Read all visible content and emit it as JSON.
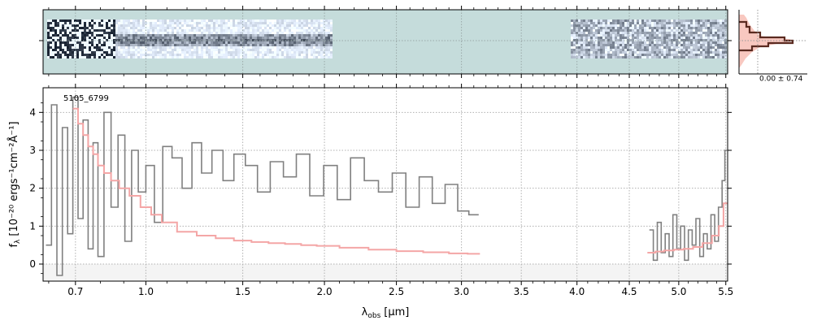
{
  "chart_data": {
    "type": "line",
    "title": "",
    "xlabel": "λ",
    "xlabel_sub": "obs",
    "xlabel_unit": "[μm]",
    "ylabel": "f",
    "ylabel_sub": "λ",
    "ylabel_unit": "[10⁻²⁰ ergs⁻¹cm⁻²Å⁻¹]",
    "annotation": "5105_6799",
    "inset_label": "0.00 ± 0.74",
    "x_tick_labels": [
      "0.7",
      "1.0",
      "1.5",
      "2.0",
      "2.5",
      "3.0",
      "3.5",
      "4.0",
      "4.5",
      "5.0",
      "5.5"
    ],
    "x_tick_values": [
      0.7,
      1.0,
      1.5,
      2.0,
      2.5,
      3.0,
      3.5,
      4.0,
      4.5,
      5.0,
      5.5
    ],
    "y_tick_labels": [
      "0",
      "1",
      "2",
      "3",
      "4"
    ],
    "y_tick_values": [
      0,
      1,
      2,
      3,
      4
    ],
    "ylim": [
      -0.45,
      4.65
    ],
    "xlim": [
      0.58,
      5.52
    ],
    "x_scale": "sqrt",
    "grid": true,
    "colors": {
      "data": "#808080",
      "model": "#f4a6a6",
      "panel2d_bg": "#c5dcdb",
      "inset_fill": "#f8c8c0",
      "inset_line": "#5a2a20"
    },
    "series": [
      {
        "segments": [
          {
            "x": [
              0.6,
              0.62,
              0.64,
              0.66,
              0.68,
              0.7,
              0.72,
              0.74,
              0.76,
              0.78,
              0.8,
              0.83,
              0.86,
              0.89,
              0.92,
              0.95,
              0.98,
              1.02,
              1.06,
              1.1,
              1.15,
              1.2,
              1.25,
              1.3,
              1.36,
              1.42,
              1.48,
              1.55,
              1.62,
              1.7,
              1.78,
              1.86,
              1.95,
              2.04,
              2.13,
              2.22,
              2.32,
              2.42,
              2.52,
              2.62,
              2.72,
              2.82,
              2.92,
              3.02,
              3.1
            ],
            "y": [
              0.5,
              4.2,
              -0.3,
              3.6,
              0.8,
              4.4,
              1.2,
              3.8,
              0.4,
              3.2,
              0.2,
              4.0,
              1.5,
              3.4,
              0.6,
              3.0,
              1.9,
              2.6,
              1.1,
              3.1,
              2.8,
              2.0,
              3.2,
              2.4,
              3.0,
              2.2,
              2.9,
              2.6,
              1.9,
              2.7,
              2.3,
              2.9,
              1.8,
              2.6,
              1.7,
              2.8,
              2.2,
              1.9,
              2.4,
              1.5,
              2.3,
              1.6,
              2.1,
              1.4,
              1.3
            ]
          },
          {
            "x": [
              4.72,
              4.76,
              4.8,
              4.84,
              4.88,
              4.92,
              4.96,
              5.0,
              5.04,
              5.08,
              5.12,
              5.16,
              5.2,
              5.24,
              5.28,
              5.32,
              5.36,
              5.4,
              5.44,
              5.48,
              5.5
            ],
            "y": [
              0.9,
              0.1,
              1.1,
              0.3,
              0.8,
              0.2,
              1.3,
              0.4,
              1.0,
              0.1,
              0.9,
              0.5,
              1.2,
              0.2,
              0.8,
              0.4,
              1.3,
              0.6,
              1.5,
              2.2,
              3.0
            ]
          }
        ]
      },
      {
        "segments": [
          {
            "x": [
              0.7,
              0.72,
              0.74,
              0.76,
              0.78,
              0.8,
              0.83,
              0.86,
              0.9,
              0.95,
              1.0,
              1.05,
              1.1,
              1.2,
              1.3,
              1.4,
              1.5,
              1.6,
              1.7,
              1.8,
              1.9,
              2.0,
              2.2,
              2.4,
              2.6,
              2.8,
              3.0,
              3.1
            ],
            "y": [
              4.1,
              3.7,
              3.4,
              3.1,
              2.9,
              2.6,
              2.4,
              2.2,
              2.0,
              1.8,
              1.5,
              1.3,
              1.1,
              0.85,
              0.75,
              0.68,
              0.62,
              0.58,
              0.55,
              0.53,
              0.5,
              0.48,
              0.43,
              0.38,
              0.34,
              0.31,
              0.28,
              0.27
            ]
          },
          {
            "x": [
              4.72,
              4.8,
              4.9,
              5.0,
              5.1,
              5.2,
              5.3,
              5.4,
              5.45,
              5.5
            ],
            "y": [
              0.3,
              0.33,
              0.36,
              0.38,
              0.4,
              0.45,
              0.55,
              0.75,
              1.0,
              1.6
            ]
          }
        ]
      }
    ]
  }
}
